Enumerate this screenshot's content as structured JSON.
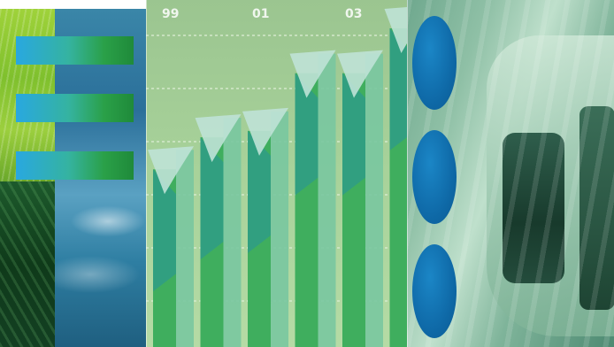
{
  "chart_graphic": {
    "year_labels": [
      "99",
      "01",
      "03"
    ],
    "bar_levels": [
      0.56,
      0.66,
      0.68,
      0.86,
      0.86,
      1.0
    ],
    "colors": {
      "bar_front": "#3fae5e",
      "bar_side": "#79c7a0",
      "bar_top": "#bfe2d6",
      "bar_teal": "#2f9c86",
      "grid": "#d9ecd2"
    }
  },
  "left_panel": {
    "tab_colors": [
      "#29a8e0",
      "#2aa048"
    ]
  },
  "right_panel": {
    "dot_color": "#0f6aa8"
  }
}
